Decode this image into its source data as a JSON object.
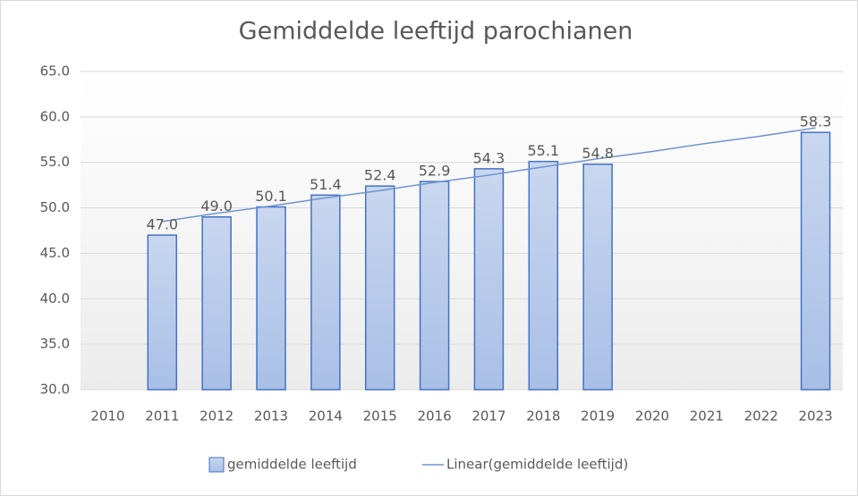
{
  "chart_data": {
    "type": "bar",
    "title": "Gemiddelde leeftijd parochianen",
    "categories": [
      "2010",
      "2011",
      "2012",
      "2013",
      "2014",
      "2015",
      "2016",
      "2017",
      "2018",
      "2019",
      "2020",
      "2021",
      "2022",
      "2023"
    ],
    "series": [
      {
        "name": "gemiddelde leeftijd",
        "type": "bar",
        "color": "#b4c7e7",
        "border": "#4472c4",
        "values": [
          null,
          47.0,
          49.0,
          50.1,
          51.4,
          52.4,
          52.9,
          54.3,
          55.1,
          54.8,
          null,
          null,
          null,
          58.3
        ],
        "value_labels": [
          null,
          "47.0",
          "49.0",
          "50.1",
          "51.4",
          "52.4",
          "52.9",
          "54.3",
          "55.1",
          "54.8",
          null,
          null,
          null,
          "58.3"
        ]
      },
      {
        "name": "Linear(gemiddelde leeftijd)",
        "type": "line",
        "color": "#6f94d2",
        "values": [
          null,
          48.5,
          49.4,
          50.2,
          51.1,
          51.9,
          52.8,
          53.6,
          54.5,
          55.4,
          56.2,
          57.1,
          57.9,
          58.8
        ]
      }
    ],
    "ylim": [
      30,
      65
    ],
    "yticks": [
      {
        "value": 30,
        "label": "30.0"
      },
      {
        "value": 35,
        "label": "35.0"
      },
      {
        "value": 40,
        "label": "40.0"
      },
      {
        "value": 45,
        "label": "45.0"
      },
      {
        "value": 50,
        "label": "50.0"
      },
      {
        "value": 55,
        "label": "55.0"
      },
      {
        "value": 60,
        "label": "60.0"
      },
      {
        "value": 65,
        "label": "65.0"
      }
    ],
    "grid": true,
    "legend": "bottom"
  }
}
